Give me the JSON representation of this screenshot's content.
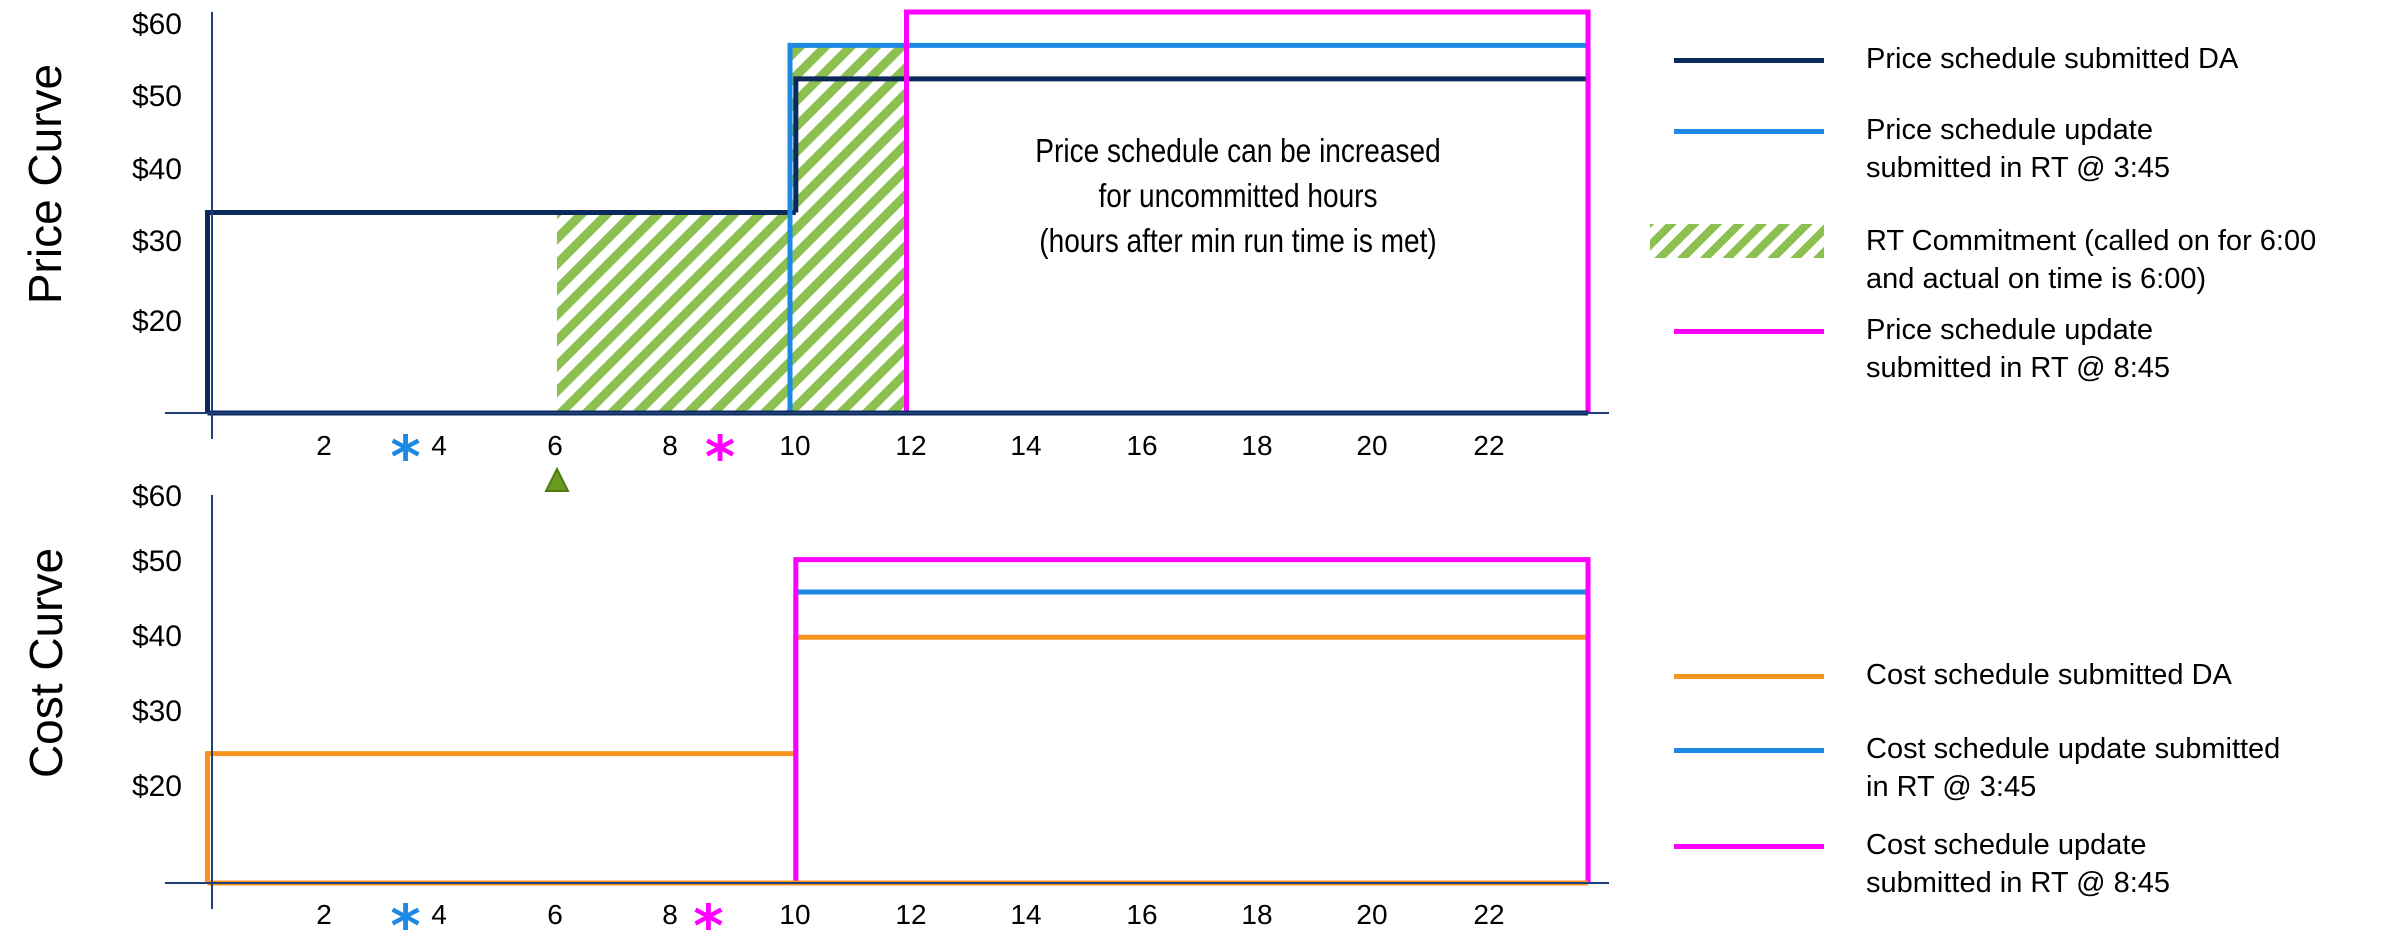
{
  "chart_data": [
    {
      "type": "line",
      "name_label": "Price Curve",
      "ylabel": "Price Curve",
      "y_ticks": [
        "$20",
        "$30",
        "$40",
        "$50",
        "$60"
      ],
      "x_ticks": [
        "2",
        "4",
        "6",
        "8",
        "10",
        "12",
        "14",
        "16",
        "18",
        "20",
        "22"
      ],
      "xlim": [
        0,
        23.7
      ],
      "ylim": [
        0,
        60
      ],
      "series": [
        {
          "name": "Price schedule submitted DA",
          "color": "#0b2a5b",
          "steps": [
            {
              "x0": 0,
              "x1": 10.1,
              "y": 30
            },
            {
              "x0": 10.1,
              "x1": 23.7,
              "y": 50
            }
          ]
        },
        {
          "name": "Price schedule update submitted in RT @ 3:45",
          "color": "#1e88e5",
          "steps": [
            {
              "x0": 10,
              "x1": 23.7,
              "y": 55
            }
          ]
        },
        {
          "name": "Price schedule update submitted in RT @ 8:45",
          "color": "#ff00ff",
          "steps": [
            {
              "x0": 12,
              "x1": 23.7,
              "y": 60
            }
          ]
        }
      ],
      "shaded_regions": [
        {
          "name": "RT Commitment (called on for 6:00 and actual on time is 6:00)",
          "color": "#8cc152",
          "segments": [
            {
              "x0": 6,
              "x1": 10,
              "y": 30
            },
            {
              "x0": 10,
              "x1": 12,
              "y": 55
            }
          ]
        }
      ],
      "annotation": "Price schedule can be increased\nfor uncommitted hours\n(hours after min run time is met)",
      "markers": [
        {
          "x": 3.4,
          "symbol": "*",
          "color": "#1e88e5"
        },
        {
          "x": 8.8,
          "symbol": "*",
          "color": "#ff00ff"
        },
        {
          "x": 6,
          "symbol": "triangle",
          "color": "#6a9a1f"
        }
      ]
    },
    {
      "type": "line",
      "ylabel": "Cost Curve",
      "y_ticks": [
        "$20",
        "$30",
        "$40",
        "$50",
        "$60"
      ],
      "x_ticks": [
        "2",
        "4",
        "6",
        "8",
        "10",
        "12",
        "14",
        "16",
        "18",
        "20",
        "22"
      ],
      "xlim": [
        0,
        23.7
      ],
      "ylim": [
        0,
        60
      ],
      "series": [
        {
          "name": "Cost schedule submitted DA",
          "color": "#f7931e",
          "steps": [
            {
              "x0": 0,
              "x1": 10.1,
              "y": 20
            },
            {
              "x0": 10.1,
              "x1": 23.7,
              "y": 38
            }
          ]
        },
        {
          "name": "Cost schedule update submitted in RT @ 3:45",
          "color": "#1e88e5",
          "steps": [
            {
              "x0": 10.1,
              "x1": 23.7,
              "y": 45
            }
          ]
        },
        {
          "name": "Cost schedule update submitted in RT @ 8:45",
          "color": "#ff00ff",
          "steps": [
            {
              "x0": 10.1,
              "x1": 23.7,
              "y": 50
            }
          ]
        }
      ],
      "markers": [
        {
          "x": 3.4,
          "symbol": "*",
          "color": "#1e88e5"
        },
        {
          "x": 8.6,
          "symbol": "*",
          "color": "#ff00ff"
        }
      ]
    }
  ],
  "legend_price": [
    {
      "label": "Price schedule submitted DA",
      "color": "#0b2a5b",
      "kind": "line"
    },
    {
      "label": "Price schedule update\nsubmitted in RT @ 3:45",
      "color": "#1e88e5",
      "kind": "line"
    },
    {
      "label": "RT Commitment (called on for 6:00\nand actual on time is 6:00)",
      "color": "#8cc152",
      "kind": "hatch"
    },
    {
      "label": "Price schedule update\nsubmitted in RT @ 8:45",
      "color": "#ff00ff",
      "kind": "line"
    }
  ],
  "legend_cost": [
    {
      "label": "Cost schedule submitted DA",
      "color": "#f7931e",
      "kind": "line"
    },
    {
      "label": "Cost schedule update submitted\nin RT @ 3:45",
      "color": "#1e88e5",
      "kind": "line"
    },
    {
      "label": "Cost schedule update\nsubmitted in RT @ 8:45",
      "color": "#ff00ff",
      "kind": "line"
    }
  ]
}
